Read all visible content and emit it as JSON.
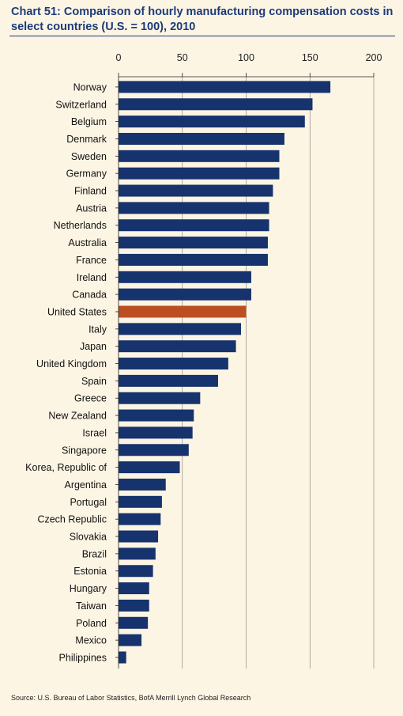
{
  "title_line1": "Chart 51: Comparison of hourly manufacturing compensation costs in",
  "title_line2": "select countries (U.S. = 100), 2010",
  "source": "Source: U.S. Bureau of Labor Statistics, BofA Merrill Lynch Global Research",
  "colors": {
    "bar": "#16336e",
    "highlight": "#bb4f22",
    "grid": "#7a7a7a",
    "axis": "#222222"
  },
  "chart_data": {
    "type": "bar",
    "orientation": "horizontal",
    "ticks": [
      0,
      50,
      100,
      150,
      200
    ],
    "xlim": [
      0,
      200
    ],
    "highlight": "United States",
    "categories": [
      "Norway",
      "Switzerland",
      "Belgium",
      "Denmark",
      "Sweden",
      "Germany",
      "Finland",
      "Austria",
      "Netherlands",
      "Australia",
      "France",
      "Ireland",
      "Canada",
      "United States",
      "Italy",
      "Japan",
      "United Kingdom",
      "Spain",
      "Greece",
      "New Zealand",
      "Israel",
      "Singapore",
      "Korea, Republic of",
      "Argentina",
      "Portugal",
      "Czech Republic",
      "Slovakia",
      "Brazil",
      "Estonia",
      "Hungary",
      "Taiwan",
      "Poland",
      "Mexico",
      "Philippines"
    ],
    "values": [
      166,
      152,
      146,
      130,
      126,
      126,
      121,
      118,
      118,
      117,
      117,
      104,
      104,
      100,
      96,
      92,
      86,
      78,
      64,
      59,
      58,
      55,
      48,
      37,
      34,
      33,
      31,
      29,
      27,
      24,
      24,
      23,
      18,
      6
    ]
  }
}
